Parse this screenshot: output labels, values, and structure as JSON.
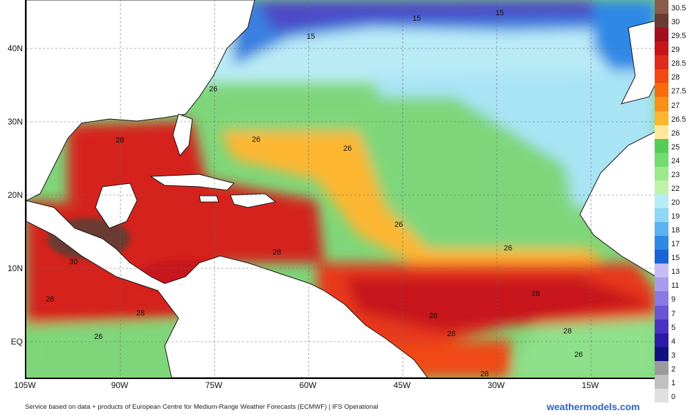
{
  "map": {
    "lat_labels": [
      "40N",
      "30N",
      "20N",
      "10N",
      "EQ"
    ],
    "lon_labels": [
      "105W",
      "90W",
      "75W",
      "60W",
      "45W",
      "30W",
      "15W"
    ],
    "contour_labels": [
      "15",
      "15",
      "15",
      "26",
      "26",
      "26",
      "28",
      "26",
      "28",
      "30",
      "28",
      "28",
      "26",
      "26",
      "28",
      "28",
      "28",
      "28",
      "26",
      "28"
    ]
  },
  "legend": {
    "labels": [
      "30.5",
      "30",
      "29.5",
      "29",
      "28.5",
      "28",
      "27.5",
      "27",
      "26.5",
      "26",
      "25",
      "24",
      "23",
      "22",
      "20",
      "19",
      "18",
      "17",
      "15",
      "13",
      "11",
      "9",
      "7",
      "5",
      "4",
      "3",
      "2",
      "1",
      "0"
    ],
    "colors": [
      "#8a5a4a",
      "#6b3a32",
      "#a0101a",
      "#c8141a",
      "#e02a1a",
      "#f04a12",
      "#f76d0d",
      "#fb9016",
      "#fdb630",
      "#fde79a",
      "#55cc55",
      "#72db72",
      "#9be88d",
      "#c0f1a8",
      "#b5ecf7",
      "#8fd7f5",
      "#5ab3f0",
      "#2e89e6",
      "#1a62d6",
      "#c6bdf5",
      "#a99bef",
      "#8a78e4",
      "#6a55d6",
      "#4a33c4",
      "#2b1aa8",
      "#101080",
      "#9a9a9a",
      "#c0c0c0",
      "#e0e0e0"
    ]
  },
  "footer": {
    "attribution": "Service based on data + products of European Centre for Medium-Range Weather Forecasts (ECMWF) | IFS Operational",
    "brand": "weathermodels.com"
  }
}
